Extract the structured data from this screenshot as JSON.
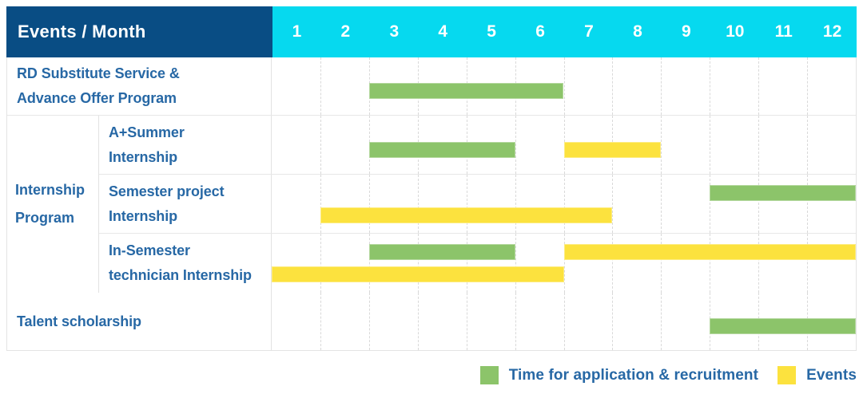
{
  "colors": {
    "header_dark_blue": "#094D84",
    "header_cyan": "#06D9EF",
    "recruitment_green": "#8CC46A",
    "events_yellow": "#FCE23E",
    "label_text_blue": "#2768A5"
  },
  "header": {
    "title": "Events / Month",
    "months": [
      "1",
      "2",
      "3",
      "4",
      "5",
      "6",
      "7",
      "8",
      "9",
      "10",
      "11",
      "12"
    ]
  },
  "gantt": {
    "rows": [
      {
        "key": "rd-substitute",
        "label": "RD Substitute Service &\nAdvance Offer Program",
        "bars": [
          {
            "series": "recruitment",
            "start": 3,
            "end": 6,
            "lane": "single"
          }
        ]
      },
      {
        "key": "a-plus-summer",
        "label": "A+Summer\nInternship",
        "bars": [
          {
            "series": "recruitment",
            "start": 3,
            "end": 5,
            "lane": "single"
          },
          {
            "series": "events",
            "start": 7,
            "end": 8,
            "lane": "single"
          }
        ]
      },
      {
        "key": "semester-project",
        "label": "Semester project\nInternship",
        "bars": [
          {
            "series": "recruitment",
            "start": 10,
            "end": 12,
            "lane": "top"
          },
          {
            "series": "events",
            "start": 2,
            "end": 7,
            "lane": "bottom"
          }
        ]
      },
      {
        "key": "in-semester-technician",
        "label": "In-Semester\ntechnician Internship",
        "bars": [
          {
            "series": "recruitment",
            "start": 3,
            "end": 5,
            "lane": "top"
          },
          {
            "series": "events",
            "start": 7,
            "end": 12,
            "lane": "top"
          },
          {
            "series": "events",
            "start": 1,
            "end": 6,
            "lane": "bottom"
          }
        ]
      },
      {
        "key": "talent-scholarship",
        "label": "Talent scholarship",
        "bars": [
          {
            "series": "recruitment",
            "start": 10,
            "end": 12,
            "lane": "single"
          }
        ]
      }
    ],
    "group_label": "Internship\nProgram"
  },
  "legend": {
    "recruitment_label": "Time for application & recruitment",
    "events_label": "Events"
  },
  "chart_data": {
    "type": "bar",
    "subtype": "gantt",
    "title": "Events / Month",
    "x_ticks": [
      1,
      2,
      3,
      4,
      5,
      6,
      7,
      8,
      9,
      10,
      11,
      12
    ],
    "x_range": [
      1,
      12
    ],
    "grid": true,
    "legend_position": "bottom-right",
    "legend": [
      {
        "name": "Time for application & recruitment",
        "color": "#8CC46A"
      },
      {
        "name": "Events",
        "color": "#FCE23E"
      }
    ],
    "rows": [
      {
        "label": "RD Substitute Service & Advance Offer Program",
        "group": null,
        "bars": [
          {
            "series": "Time for application & recruitment",
            "start_month": 3,
            "end_month": 6
          }
        ]
      },
      {
        "label": "A+Summer Internship",
        "group": "Internship Program",
        "bars": [
          {
            "series": "Time for application & recruitment",
            "start_month": 3,
            "end_month": 5
          },
          {
            "series": "Events",
            "start_month": 7,
            "end_month": 8
          }
        ]
      },
      {
        "label": "Semester project Internship",
        "group": "Internship Program",
        "bars": [
          {
            "series": "Time for application & recruitment",
            "start_month": 10,
            "end_month": 12
          },
          {
            "series": "Events",
            "start_month": 2,
            "end_month": 7
          }
        ]
      },
      {
        "label": "In-Semester technician Internship",
        "group": "Internship Program",
        "bars": [
          {
            "series": "Time for application & recruitment",
            "start_month": 3,
            "end_month": 5
          },
          {
            "series": "Events",
            "start_month": 7,
            "end_month": 12
          },
          {
            "series": "Events",
            "start_month": 1,
            "end_month": 6
          }
        ]
      },
      {
        "label": "Talent scholarship",
        "group": null,
        "bars": [
          {
            "series": "Time for application & recruitment",
            "start_month": 10,
            "end_month": 12
          }
        ]
      }
    ]
  }
}
